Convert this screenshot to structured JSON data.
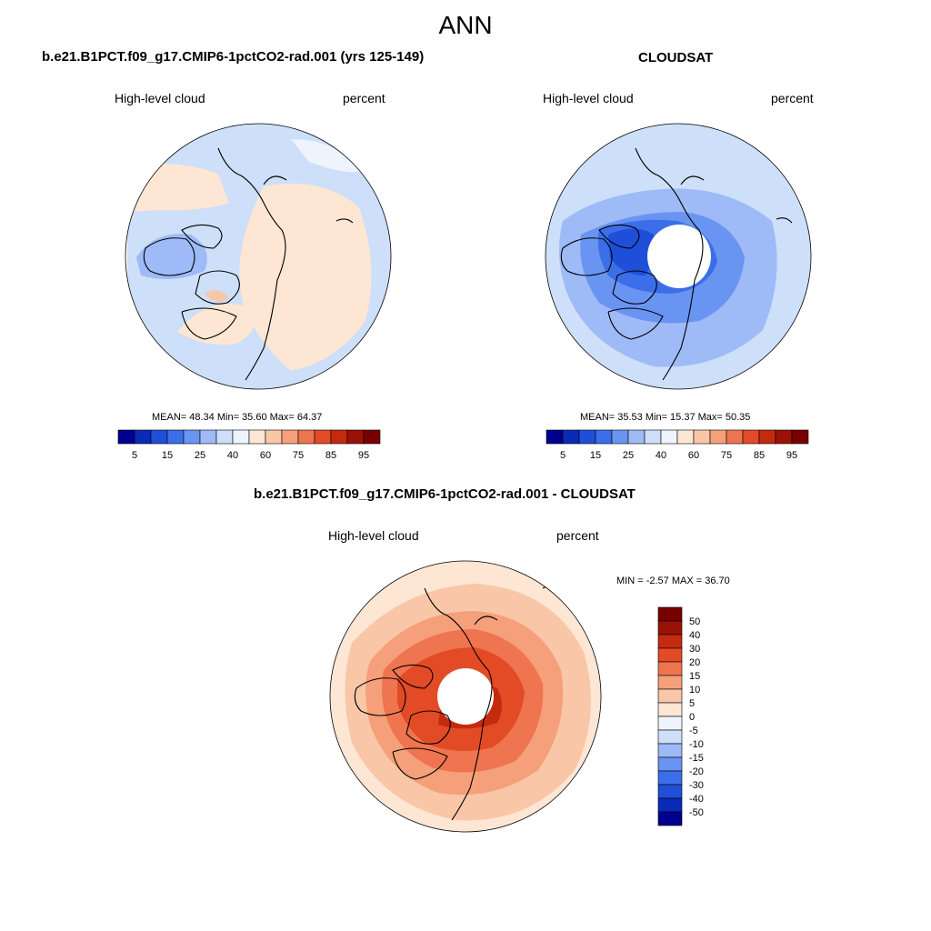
{
  "header": {
    "title": "ANN"
  },
  "panels": {
    "model": {
      "title": "b.e21.B1PCT.f09_g17.CMIP6-1pctCO2-rad.001 (yrs 125-149)",
      "variable": "High-level cloud",
      "units": "percent",
      "stats_text": "MEAN=  48.34  Min=  35.60  Max=  64.37",
      "stats": {
        "mean": 48.34,
        "min": 35.6,
        "max": 64.37
      }
    },
    "obs": {
      "title": "CLOUDSAT",
      "variable": "High-level cloud",
      "units": "percent",
      "stats_text": "MEAN=  35.53  Min=  15.37  Max=  50.35",
      "stats": {
        "mean": 35.53,
        "min": 15.37,
        "max": 50.35
      }
    },
    "diff": {
      "title": "b.e21.B1PCT.f09_g17.CMIP6-1pctCO2-rad.001 - CLOUDSAT",
      "variable": "High-level cloud",
      "units": "percent",
      "stats_text": "MIN =  -2.57 MAX =  36.70",
      "stats": {
        "min": -2.57,
        "max": 36.7
      }
    }
  },
  "colorbar_abs": {
    "colors": [
      "#00008f",
      "#0a2ab8",
      "#1f4fd8",
      "#3b6ee8",
      "#6a94f2",
      "#9ebaf7",
      "#cddff9",
      "#eef4fb",
      "#fde6d4",
      "#f9c6a8",
      "#f5a07a",
      "#ef7450",
      "#e34a26",
      "#c42a0e",
      "#9a1206",
      "#780000"
    ],
    "labels": [
      "5",
      "15",
      "25",
      "40",
      "60",
      "75",
      "85",
      "95"
    ]
  },
  "colorbar_diff": {
    "colors": [
      "#780000",
      "#9a1206",
      "#c42a0e",
      "#e34a26",
      "#ef7450",
      "#f5a07a",
      "#f9c6a8",
      "#fde6d4",
      "#eef4fb",
      "#cddff9",
      "#9ebaf7",
      "#6a94f2",
      "#3b6ee8",
      "#1f4fd8",
      "#0a2ab8",
      "#00008f"
    ],
    "labels": [
      "50",
      "40",
      "30",
      "20",
      "15",
      "10",
      "5",
      "0",
      "-5",
      "-10",
      "-15",
      "-20",
      "-30",
      "-40",
      "-50"
    ]
  }
}
